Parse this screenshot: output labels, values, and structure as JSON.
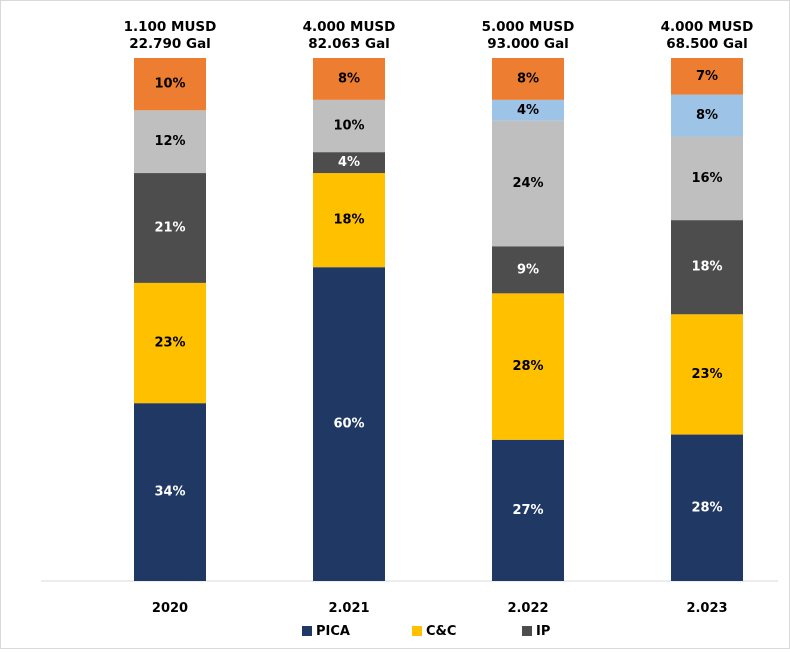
{
  "chart_data": {
    "type": "bar",
    "stacked": true,
    "categories": [
      "2020",
      "2.021",
      "2.022",
      "2.023"
    ],
    "top_labels": [
      [
        "1.100 MUSD",
        "22.790 Gal"
      ],
      [
        "4.000 MUSD",
        "82.063 Gal"
      ],
      [
        "5.000 MUSD",
        "93.000 Gal"
      ],
      [
        "4.000 MUSD",
        "68.500 Gal"
      ]
    ],
    "series": [
      {
        "name": "PICA",
        "color": "#1f3864",
        "text_color": "#ffffff",
        "values": [
          34,
          60,
          27,
          28
        ]
      },
      {
        "name": "C&C",
        "color": "#ffc000",
        "text_color": "#000000",
        "values": [
          23,
          18,
          28,
          23
        ]
      },
      {
        "name": "IP",
        "color": "#4d4d4d",
        "text_color": "#ffffff",
        "values": [
          21,
          4,
          9,
          18
        ]
      },
      {
        "color": "#bfbfbf",
        "text_color": "#000000",
        "values": [
          12,
          10,
          24,
          16
        ]
      },
      {
        "color": "#9dc3e6",
        "text_color": "#000000",
        "values": [
          null,
          null,
          4,
          8
        ]
      },
      {
        "color": "#ed7d31",
        "text_color": "#000000",
        "values": [
          10,
          8,
          8,
          7
        ]
      }
    ],
    "legend": {
      "position": "bottom",
      "entries": [
        "PICA",
        "C&C",
        "IP"
      ]
    },
    "value_suffix": "%",
    "ylim": [
      0,
      100
    ],
    "grid": false,
    "y_axis_visible": false
  }
}
